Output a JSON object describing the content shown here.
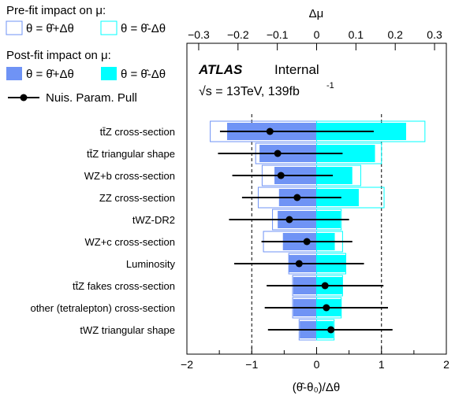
{
  "chart_data": {
    "type": "ranking",
    "legend": {
      "prefit_header": "Pre-fit impact on  μ:",
      "postfit_header": "Post-fit impact on  μ:",
      "up_label": "θ = θ̂+Δθ",
      "down_label": "θ = θ̂-Δθ",
      "pull_label": "Nuis. Param. Pull"
    },
    "atlas_label": "ATLAS",
    "internal_label": "Internal",
    "energy_label": "√s = 13TeV, 139fb",
    "energy_sup": "-1",
    "top_axis": {
      "label": "Δμ",
      "ticks": [
        "−0.3",
        "−0.2",
        "−0.1",
        "0",
        "0.1",
        "0.2",
        "0.3"
      ],
      "range": [
        -0.33,
        0.33
      ]
    },
    "bottom_axis": {
      "label": "(θ̂-θ₀)/Δθ",
      "ticks": [
        "−2",
        "−1.5",
        "−1",
        "−0.5",
        "0",
        "0.5",
        "1",
        "1.5",
        "2"
      ],
      "range": [
        -2,
        2
      ]
    },
    "colors": {
      "up": "#6f93f5",
      "down": "#00ffff",
      "prefit_up": "#6f93f5",
      "prefit_down": "#00ffff",
      "pull": "#000000"
    },
    "parameters": [
      {
        "name": "tt̄Z cross-section",
        "prefit_up": -1.64,
        "prefit_down": 1.67,
        "postfit_up": -1.38,
        "postfit_down": 1.38,
        "pull": -0.72,
        "err_lo": 0.77,
        "err_hi": 1.6
      },
      {
        "name": "tt̄Z triangular shape",
        "prefit_up": -0.94,
        "prefit_down": 1.0,
        "postfit_up": -0.88,
        "postfit_down": 0.9,
        "pull": -0.6,
        "err_lo": 0.92,
        "err_hi": 1.0
      },
      {
        "name": "WZ+b cross-section",
        "prefit_up": -0.84,
        "prefit_down": 0.68,
        "postfit_up": -0.65,
        "postfit_down": 0.55,
        "pull": -0.55,
        "err_lo": 0.75,
        "err_hi": 0.8
      },
      {
        "name": "ZZ cross-section",
        "prefit_up": -0.9,
        "prefit_down": 1.04,
        "postfit_up": -0.58,
        "postfit_down": 0.65,
        "pull": -0.3,
        "err_lo": 0.85,
        "err_hi": 0.68
      },
      {
        "name": "tWZ-DR2",
        "prefit_up": -0.68,
        "prefit_down": 0.38,
        "postfit_up": -0.6,
        "postfit_down": 0.37,
        "pull": -0.42,
        "err_lo": 0.93,
        "err_hi": 0.92
      },
      {
        "name": "WZ+c cross-section",
        "prefit_up": -0.82,
        "prefit_down": 0.4,
        "postfit_up": -0.52,
        "postfit_down": 0.28,
        "pull": -0.15,
        "err_lo": 0.7,
        "err_hi": 0.7
      },
      {
        "name": "Luminosity",
        "prefit_up": -0.43,
        "prefit_down": 0.45,
        "postfit_up": -0.43,
        "postfit_down": 0.45,
        "pull": -0.27,
        "err_lo": 1.0,
        "err_hi": 1.0
      },
      {
        "name": "tt̄Z fakes cross-section",
        "prefit_up": -0.37,
        "prefit_down": 0.4,
        "postfit_up": -0.36,
        "postfit_down": 0.4,
        "pull": 0.13,
        "err_lo": 0.9,
        "err_hi": 0.9
      },
      {
        "name": "other (tetralepton) cross-section",
        "prefit_up": -0.37,
        "prefit_down": 0.38,
        "postfit_up": -0.36,
        "postfit_down": 0.38,
        "pull": 0.15,
        "err_lo": 0.95,
        "err_hi": 0.95
      },
      {
        "name": "tWZ triangular shape",
        "prefit_up": -0.27,
        "prefit_down": 0.27,
        "postfit_up": -0.26,
        "postfit_down": 0.26,
        "pull": 0.22,
        "err_lo": 0.97,
        "err_hi": 0.95
      }
    ]
  }
}
